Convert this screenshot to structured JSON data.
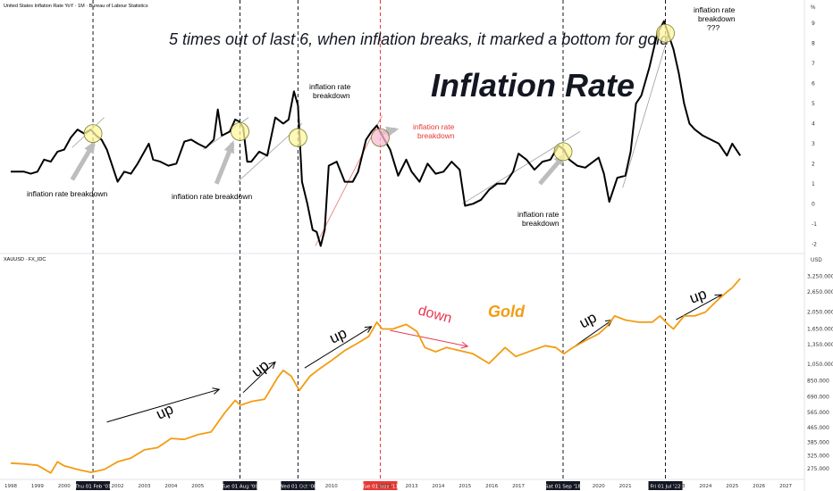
{
  "chart_data": [
    {
      "type": "line",
      "title": "United States Inflation Rate YoY · 1M · Bureau of Labour Statistics",
      "headline": "5 times out of last 6, when inflation breaks, it marked a bottom for gold",
      "big_label": "Inflation Rate",
      "ylim": [
        -2.3,
        9.8
      ],
      "y_ticks": [
        -2,
        -1,
        0,
        1,
        2,
        3,
        4,
        5,
        6,
        7,
        8,
        9
      ],
      "y_unit_label": "%",
      "series": [
        {
          "x": [
            1998.0,
            1998.25,
            1998.5,
            1998.75,
            1999.0,
            1999.25,
            1999.5,
            1999.75,
            2000.0,
            2000.25,
            2000.5,
            2000.75,
            2001.0,
            2001.2,
            2001.4,
            2001.6,
            2001.8,
            2002.0,
            2002.25,
            2002.5,
            2002.75,
            2003.0,
            2003.17,
            2003.33,
            2003.6,
            2003.9,
            2004.2,
            2004.5,
            2004.75,
            2005.0,
            2005.3,
            2005.6,
            2005.75,
            2005.9,
            2006.2,
            2006.4,
            2006.55,
            2006.7,
            2006.85,
            2007.0,
            2007.3,
            2007.6,
            2007.9,
            2008.2,
            2008.4,
            2008.6,
            2008.75,
            2008.9,
            2009.1,
            2009.3,
            2009.45,
            2009.6,
            2009.75,
            2009.9,
            2010.2,
            2010.5,
            2010.8,
            2011.0,
            2011.3,
            2011.5,
            2011.7,
            2011.9,
            2012.2,
            2012.5,
            2012.8,
            2013.0,
            2013.3,
            2013.6,
            2013.9,
            2014.2,
            2014.5,
            2014.8,
            2015.0,
            2015.3,
            2015.6,
            2015.9,
            2016.2,
            2016.5,
            2016.8,
            2017.0,
            2017.3,
            2017.6,
            2017.9,
            2018.2,
            2018.5,
            2018.7,
            2018.9,
            2019.2,
            2019.5,
            2019.8,
            2020.0,
            2020.2,
            2020.4,
            2020.7,
            2021.0,
            2021.2,
            2021.4,
            2021.6,
            2021.9,
            2022.2,
            2022.45,
            2022.6,
            2022.8,
            2023.0,
            2023.2,
            2023.4,
            2023.6,
            2023.9,
            2024.2,
            2024.5,
            2024.8,
            2025.0,
            2025.3
          ],
          "values": [
            1.6,
            1.6,
            1.6,
            1.5,
            1.6,
            2.2,
            2.1,
            2.6,
            2.7,
            3.3,
            3.7,
            3.5,
            3.7,
            3.4,
            3.2,
            2.7,
            1.9,
            1.1,
            1.6,
            1.5,
            2.0,
            2.6,
            3.0,
            2.2,
            2.1,
            1.9,
            2.0,
            3.1,
            3.2,
            3.0,
            2.8,
            3.2,
            4.7,
            3.4,
            3.6,
            4.2,
            4.1,
            3.8,
            2.1,
            2.1,
            2.6,
            2.4,
            4.3,
            4.0,
            4.2,
            5.6,
            4.9,
            1.1,
            0.0,
            -1.3,
            -1.4,
            -2.1,
            -1.3,
            1.9,
            2.1,
            1.1,
            1.1,
            1.6,
            3.2,
            3.6,
            3.9,
            3.4,
            2.7,
            1.4,
            2.2,
            1.6,
            1.1,
            2.0,
            1.5,
            1.6,
            2.1,
            1.7,
            -0.1,
            0.0,
            0.2,
            0.7,
            1.0,
            1.0,
            1.6,
            2.5,
            2.2,
            1.7,
            2.1,
            2.2,
            2.9,
            2.7,
            2.2,
            1.9,
            1.8,
            2.1,
            2.3,
            1.5,
            0.1,
            1.3,
            1.4,
            2.6,
            5.0,
            5.4,
            6.8,
            8.5,
            9.1,
            8.5,
            7.7,
            6.5,
            5.0,
            4.0,
            3.7,
            3.4,
            3.2,
            3.0,
            2.4,
            3.0,
            2.4
          ]
        }
      ],
      "annotations": [
        {
          "text": "inflation rate breakdown"
        },
        {
          "text": "inflation rate breakdown"
        },
        {
          "text": "inflation rate breakdown",
          "lines": [
            "inflation rate",
            "breakdown"
          ]
        },
        {
          "text": "inflation rate breakdown",
          "lines": [
            "inflation rate",
            "breakdown"
          ],
          "color": "#e53935"
        },
        {
          "text": "inflation rate breakdown",
          "lines": [
            "inflation rate",
            "breakdown"
          ]
        },
        {
          "text": "inflation rate breakdown ???",
          "lines": [
            "inflation rate",
            "breakdown",
            "???"
          ]
        }
      ]
    },
    {
      "type": "line",
      "title": "XAUUSD · FX_IDC",
      "big_label": "Gold",
      "y_unit_label": "USD",
      "scale": "log",
      "ylim": [
        245,
        3700
      ],
      "y_ticks": [
        275,
        325,
        385,
        465,
        565,
        690,
        850,
        1050,
        1350,
        1650,
        2050,
        2650,
        3250
      ],
      "y_tick_labels": [
        "275.000",
        "325.000",
        "385.000",
        "465.000",
        "565.000",
        "690.000",
        "850.000",
        "1,050.000",
        "1,350.000",
        "1,650.000",
        "2,050.000",
        "2,650.000",
        "3,250.000"
      ],
      "series": [
        {
          "name": "Gold",
          "color": "#f39c12",
          "x": [
            1998.0,
            1998.5,
            1999.0,
            1999.5,
            1999.75,
            2000.0,
            2000.5,
            2001.0,
            2001.5,
            2002.0,
            2002.5,
            2003.0,
            2003.5,
            2004.0,
            2004.5,
            2005.0,
            2005.5,
            2006.0,
            2006.4,
            2006.6,
            2007.0,
            2007.5,
            2008.0,
            2008.2,
            2008.5,
            2008.8,
            2009.2,
            2009.6,
            2010.0,
            2010.5,
            2011.0,
            2011.4,
            2011.7,
            2011.9,
            2012.3,
            2012.8,
            2013.2,
            2013.5,
            2013.9,
            2014.3,
            2014.8,
            2015.3,
            2015.9,
            2016.5,
            2016.9,
            2017.5,
            2018.0,
            2018.4,
            2018.7,
            2019.0,
            2019.5,
            2020.0,
            2020.3,
            2020.6,
            2021.0,
            2021.5,
            2022.0,
            2022.3,
            2022.6,
            2022.8,
            2023.2,
            2023.6,
            2024.0,
            2024.4,
            2024.8,
            2025.0,
            2025.3
          ],
          "values": [
            295,
            292,
            287,
            260,
            300,
            285,
            272,
            262,
            272,
            300,
            315,
            350,
            360,
            405,
            400,
            425,
            440,
            560,
            660,
            620,
            650,
            670,
            890,
            970,
            900,
            750,
            900,
            1000,
            1100,
            1250,
            1380,
            1500,
            1800,
            1650,
            1650,
            1750,
            1600,
            1300,
            1230,
            1300,
            1250,
            1200,
            1060,
            1300,
            1160,
            1250,
            1330,
            1300,
            1200,
            1290,
            1420,
            1550,
            1700,
            1950,
            1850,
            1800,
            1800,
            1950,
            1750,
            1650,
            1950,
            1950,
            2050,
            2350,
            2650,
            2800,
            3150
          ]
        }
      ],
      "annotations": [
        {
          "text": "up"
        },
        {
          "text": "up"
        },
        {
          "text": "up"
        },
        {
          "text": "down",
          "color": "#e53950"
        },
        {
          "text": "up"
        },
        {
          "text": "up"
        }
      ]
    }
  ],
  "x_axis": {
    "range": [
      1997.6,
      2027.7
    ],
    "year_ticks": [
      "1998",
      "1999",
      "2000",
      "2002",
      "2003",
      "2004",
      "2005",
      "2007",
      "2009",
      "2010",
      "2012",
      "2013",
      "2014",
      "2015",
      "2016",
      "2017",
      "2020",
      "2021",
      "2023",
      "2024",
      "2025",
      "2026",
      "2027"
    ],
    "event_labels": [
      {
        "text": "Thu 01 Feb '01",
        "x": 2001.08,
        "color": "#131722"
      },
      {
        "text": "Tue 01 Aug '06",
        "x": 2006.58,
        "color": "#131722"
      },
      {
        "text": "Wed 01 Oct '08",
        "x": 2008.75,
        "color": "#131722"
      },
      {
        "text": "Tue 01 Nov '11",
        "x": 2011.83,
        "color": "#e53935"
      },
      {
        "text": "Sat 01 Sep '18",
        "x": 2018.67,
        "color": "#131722"
      },
      {
        "text": "Fri 01 Jul '22",
        "x": 2022.5,
        "color": "#131722"
      }
    ]
  }
}
